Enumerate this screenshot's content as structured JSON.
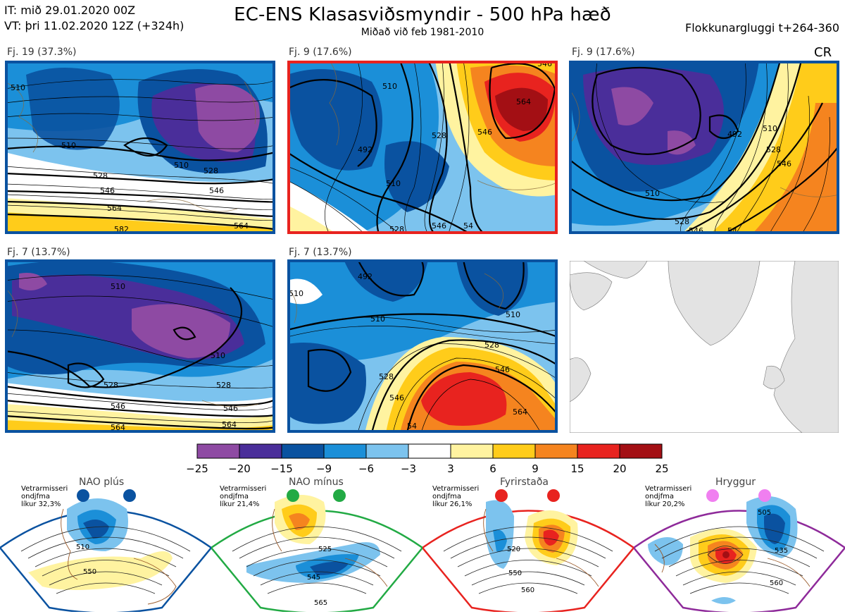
{
  "header": {
    "it_line": "IT: mið 29.01.2020 00Z",
    "vt_line": "VT: þri 11.02.2020 12Z  (+324h)",
    "title": "EC-ENS Klasasviðsmyndir - 500 hPa hæð",
    "subtitle": "Miðað við feb 1981-2010",
    "window": "Flokkunargluggi t+264-360",
    "cr": "CR"
  },
  "panels": [
    {
      "label": "Fj. 19 (37.3%)",
      "frame_color": "#0a52a0",
      "contours": [
        "510",
        "510",
        "510",
        "528",
        "546",
        "564",
        "582",
        "564",
        "546",
        "528",
        "528"
      ]
    },
    {
      "label": "Fj. 9 (17.6%)",
      "frame_color": "#e8231f",
      "contours": [
        "510",
        "492",
        "528",
        "546",
        "564",
        "510",
        "528",
        "546",
        "54",
        "546"
      ]
    },
    {
      "label": "Fj. 9 (17.6%)",
      "frame_color": "#0a52a0",
      "contours": [
        "492",
        "510",
        "528",
        "510",
        "546",
        "528",
        "546",
        "54"
      ]
    },
    {
      "label": "Fj. 7 (13.7%)",
      "frame_color": "#0a52a0",
      "contours": [
        "510",
        "510",
        "528",
        "546",
        "546",
        "564",
        "564",
        "528"
      ]
    },
    {
      "label": "Fj. 7 (13.7%)",
      "frame_color": "#0a52a0",
      "contours": [
        "492",
        "510",
        "510",
        "528",
        "546",
        "528",
        "546",
        "564",
        "54",
        "510"
      ]
    }
  ],
  "colorbar": {
    "ticks": [
      "−25",
      "−20",
      "−15",
      "−9",
      "−6",
      "−3",
      "3",
      "6",
      "9",
      "15",
      "20",
      "25"
    ],
    "colors": [
      "#8e4aa3",
      "#4a2e9a",
      "#0a52a0",
      "#1b8fd8",
      "#7cc3ee",
      "#ffffff",
      "#fff3a0",
      "#ffcc1a",
      "#f5841f",
      "#e8231f",
      "#a30f14"
    ]
  },
  "regimes": [
    {
      "title": "NAO plús",
      "note": [
        "Vetrarmisseri",
        "ondjfma",
        "líkur 32,3%"
      ],
      "color": "#0a52a0",
      "labels": [
        "510",
        "550"
      ]
    },
    {
      "title": "NAO mínus",
      "note": [
        "Vetrarmisseri",
        "ondjfma",
        "líkur 21,4%"
      ],
      "color": "#22aa44",
      "labels": [
        "525",
        "545",
        "565"
      ]
    },
    {
      "title": "Fyrirstaða",
      "note": [
        "Vetrarmisseri",
        "ondjfma",
        "líkur 26,1%"
      ],
      "color": "#e8231f",
      "labels": [
        "520",
        "550",
        "560"
      ]
    },
    {
      "title": "Hryggur",
      "note": [
        "Vetrarmisseri",
        "ondjfma",
        "líkur 20,2%"
      ],
      "color": "#8e2a9a",
      "dot_color": "#f07ff0",
      "labels": [
        "505",
        "535",
        "560"
      ]
    }
  ]
}
